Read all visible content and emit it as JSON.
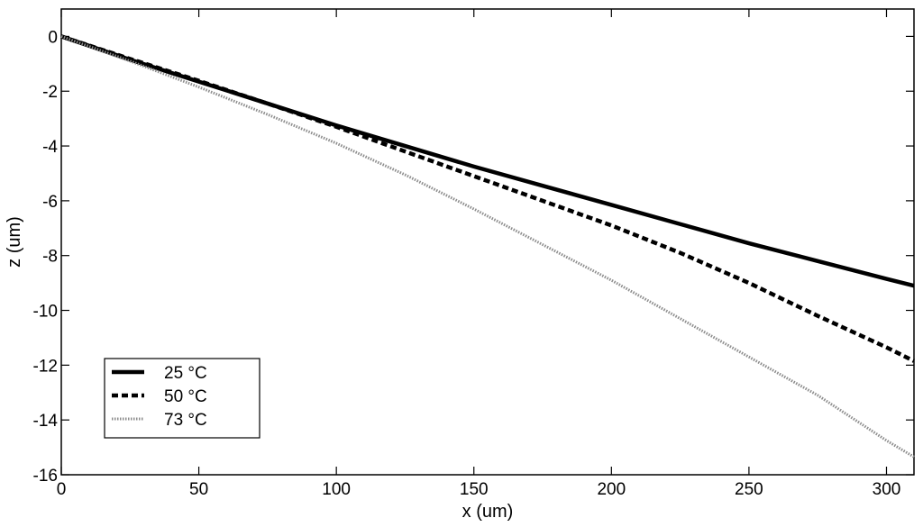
{
  "chart_data": {
    "type": "line",
    "title": "",
    "xlabel": "x (um)",
    "ylabel": "z (um)",
    "xlim": [
      0,
      310
    ],
    "ylim": [
      -16,
      1
    ],
    "grid": false,
    "legend_position": "bottom-left",
    "xticks": [
      0,
      50,
      100,
      150,
      200,
      250,
      300
    ],
    "yticks": [
      0,
      -2,
      -4,
      -6,
      -8,
      -10,
      -12,
      -14,
      -16
    ],
    "x": [
      0,
      25,
      50,
      75,
      100,
      125,
      150,
      175,
      200,
      225,
      250,
      275,
      300,
      310
    ],
    "series": [
      {
        "name": "25 °C",
        "style": "solid",
        "color": "#000000",
        "values": [
          0,
          -0.85,
          -1.65,
          -2.45,
          -3.25,
          -4.0,
          -4.75,
          -5.45,
          -6.15,
          -6.85,
          -7.55,
          -8.2,
          -8.85,
          -9.1
        ]
      },
      {
        "name": "50 °C",
        "style": "dashed",
        "color": "#000000",
        "values": [
          0,
          -0.82,
          -1.62,
          -2.45,
          -3.3,
          -4.2,
          -5.1,
          -6.0,
          -6.9,
          -7.9,
          -9.0,
          -10.2,
          -11.35,
          -11.85
        ]
      },
      {
        "name": "73 °C",
        "style": "dotted",
        "color": "#8c8c8c",
        "values": [
          0,
          -0.9,
          -1.85,
          -2.85,
          -3.9,
          -5.05,
          -6.3,
          -7.6,
          -8.9,
          -10.3,
          -11.7,
          -13.1,
          -14.75,
          -15.35
        ]
      }
    ]
  }
}
